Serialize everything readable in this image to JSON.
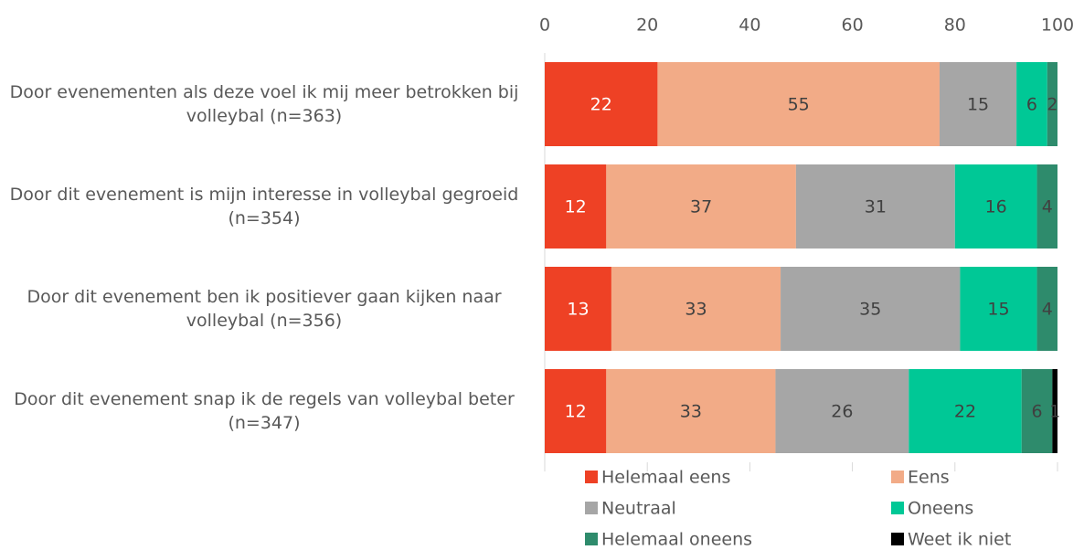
{
  "chart_data": {
    "type": "stacked_barh",
    "categories": [
      "Door evenementen als deze voel ik mij meer betrokken bij volleybal (n=363)",
      "Door dit evenement is mijn interesse in volleybal gegroeid (n=354)",
      "Door dit evenement ben ik positiever gaan kijken naar volleybal (n=356)",
      "Door dit evenement snap ik de regels van volleybal beter (n=347)"
    ],
    "series": [
      {
        "name": "Helemaal eens",
        "color": "#ee4125",
        "values": [
          22,
          12,
          13,
          12
        ]
      },
      {
        "name": "Eens",
        "color": "#f2ab87",
        "values": [
          55,
          37,
          33,
          33
        ]
      },
      {
        "name": "Neutraal",
        "color": "#a6a6a6",
        "values": [
          15,
          31,
          35,
          26
        ]
      },
      {
        "name": "Oneens",
        "color": "#00c896",
        "values": [
          6,
          16,
          15,
          22
        ]
      },
      {
        "name": "Helemaal oneens",
        "color": "#2e8b6c",
        "values": [
          2,
          4,
          4,
          6
        ]
      },
      {
        "name": "Weet ik niet",
        "color": "#000000",
        "values": [
          0,
          0,
          0,
          1
        ]
      }
    ],
    "xlim": [
      0,
      100
    ],
    "xticks": [
      0,
      20,
      40,
      60,
      80,
      100
    ],
    "legend": "bottom"
  }
}
